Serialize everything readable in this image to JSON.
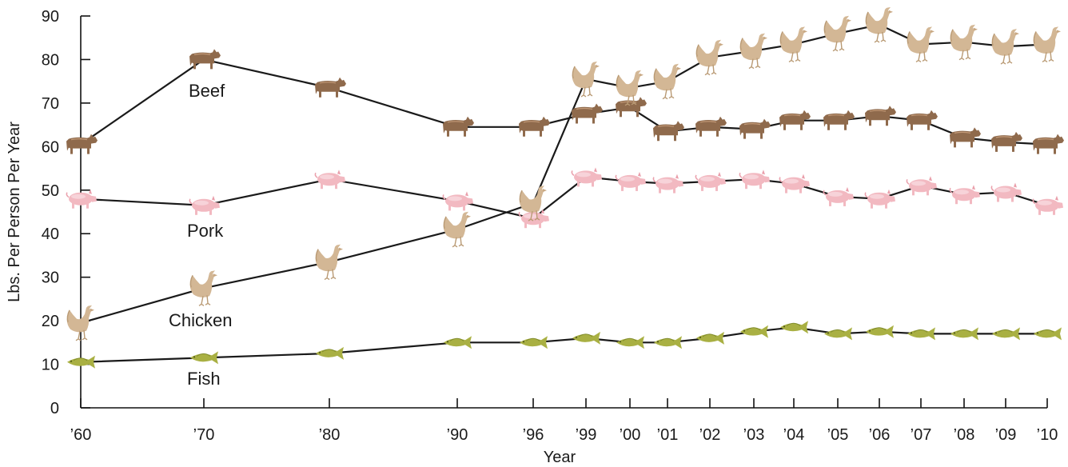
{
  "chart_data": {
    "type": "line",
    "title": "",
    "xlabel": "Year",
    "ylabel": "Lbs. Per Person Per Year",
    "ylim": [
      0,
      90
    ],
    "yticks": [
      0,
      10,
      20,
      30,
      40,
      50,
      60,
      70,
      80,
      90
    ],
    "categories": [
      "'60",
      "'70",
      "'80",
      "'90",
      "'96",
      "'99",
      "'00",
      "'01",
      "'02",
      "'03",
      "'04",
      "'05",
      "'06",
      "'07",
      "'08",
      "'09",
      "'10"
    ],
    "grid": false,
    "legend": "none",
    "series": [
      {
        "name": "Beef",
        "icon": "cow-icon",
        "color": "#8f6a4c",
        "values": [
          60.5,
          80,
          73.5,
          64.5,
          64.5,
          67.5,
          69,
          63.5,
          64.5,
          64,
          66,
          66,
          67,
          66,
          62,
          61,
          60.5
        ]
      },
      {
        "name": "Pork",
        "icon": "pig-icon",
        "color": "#f2b9c1",
        "values": [
          48,
          46.5,
          52.5,
          47.5,
          43.5,
          53,
          52,
          51.5,
          52,
          52.5,
          51.5,
          48.5,
          48,
          51,
          49,
          49.5,
          46.5
        ]
      },
      {
        "name": "Chicken",
        "icon": "rooster-icon",
        "color": "#d3b795",
        "values": [
          19.5,
          27.5,
          33.5,
          41,
          47,
          75.5,
          73.5,
          75,
          80.5,
          82,
          83.5,
          86,
          88,
          83.5,
          84,
          83,
          83.5
        ]
      },
      {
        "name": "Fish",
        "icon": "fish-icon",
        "color": "#a9b043",
        "values": [
          10.5,
          11.5,
          12.5,
          15,
          15,
          16,
          15,
          15,
          16,
          17.5,
          18.5,
          17,
          17.5,
          17,
          17,
          17,
          17
        ]
      }
    ]
  }
}
